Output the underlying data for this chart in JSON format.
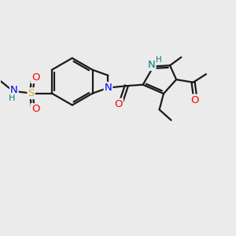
{
  "bg_color": "#EBEBEB",
  "bond_color": "#1a1a1a",
  "bond_width": 1.6,
  "atom_colors": {
    "N_blue": "#0000FF",
    "N_teal": "#008080",
    "O_red": "#FF0000",
    "S_yellow": "#DAA520",
    "H_teal": "#008080"
  },
  "font_size_atom": 9.5,
  "font_size_small": 8.0,
  "figsize": [
    3.0,
    3.0
  ],
  "dpi": 100,
  "xlim": [
    0,
    10
  ],
  "ylim": [
    0,
    10
  ]
}
